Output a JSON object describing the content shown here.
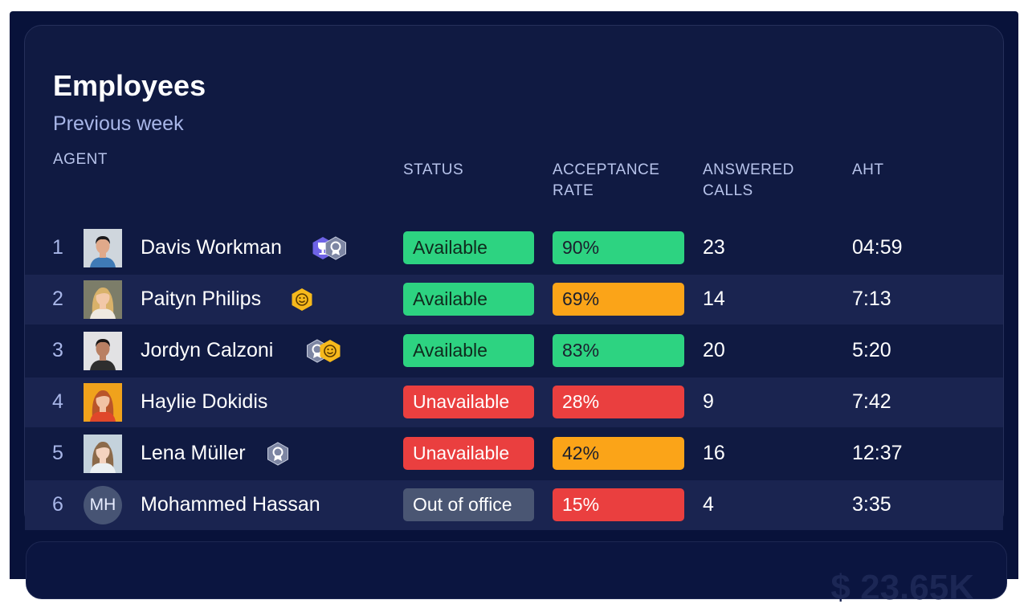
{
  "card": {
    "title": "Employees",
    "subtitle": "Previous week"
  },
  "columns": {
    "agent": "AGENT",
    "status": "STATUS",
    "acceptance_rate": [
      "ACCEPTANCE",
      "RATE"
    ],
    "answered_calls": [
      "ANSWERED",
      "CALLS"
    ],
    "aht": "AHT"
  },
  "colors": {
    "available": "#2dd381",
    "unavailable": "#ea3f3f",
    "out_of_office": "#4a5673",
    "rate_high": "#2dd381",
    "rate_mid": "#fba418",
    "rate_low": "#ea3f3f",
    "badge_purple": "#6e63e6",
    "badge_gray": "#7d86a3",
    "badge_gold": "#f6b91c"
  },
  "rows": [
    {
      "rank": "1",
      "name": "Davis Workman",
      "avatar": "photo",
      "badges": [
        "trophy-badge-icon",
        "medal-badge-icon"
      ],
      "status": "Available",
      "status_kind": "available",
      "rate": "90%",
      "rate_kind": "high",
      "calls": "23",
      "aht": "04:59"
    },
    {
      "rank": "2",
      "name": "Paityn Philips",
      "avatar": "photo",
      "badges": [
        "smile-badge-icon"
      ],
      "status": "Available",
      "status_kind": "available",
      "rate": "69%",
      "rate_kind": "mid",
      "calls": "14",
      "aht": "7:13"
    },
    {
      "rank": "3",
      "name": "Jordyn Calzoni",
      "avatar": "photo",
      "badges": [
        "medal-badge-icon",
        "smile-badge-icon"
      ],
      "status": "Available",
      "status_kind": "available",
      "rate": "83%",
      "rate_kind": "high",
      "calls": "20",
      "aht": "5:20"
    },
    {
      "rank": "4",
      "name": "Haylie Dokidis",
      "avatar": "photo",
      "badges": [],
      "status": "Unavailable",
      "status_kind": "unavailable",
      "rate": "28%",
      "rate_kind": "low",
      "calls": "9",
      "aht": "7:42"
    },
    {
      "rank": "5",
      "name": "Lena Müller",
      "avatar": "photo",
      "badges": [
        "medal-badge-icon"
      ],
      "status": "Unavailable",
      "status_kind": "unavailable",
      "rate": "42%",
      "rate_kind": "mid",
      "calls": "16",
      "aht": "12:37"
    },
    {
      "rank": "6",
      "name": "Mohammed Hassan",
      "avatar": "initials",
      "initials": "MH",
      "badges": [],
      "status": "Out of office",
      "status_kind": "out_of_office",
      "rate": "15%",
      "rate_kind": "low",
      "calls": "4",
      "aht": "3:35"
    }
  ],
  "next_panel": {
    "value": "$ 23.65K"
  }
}
